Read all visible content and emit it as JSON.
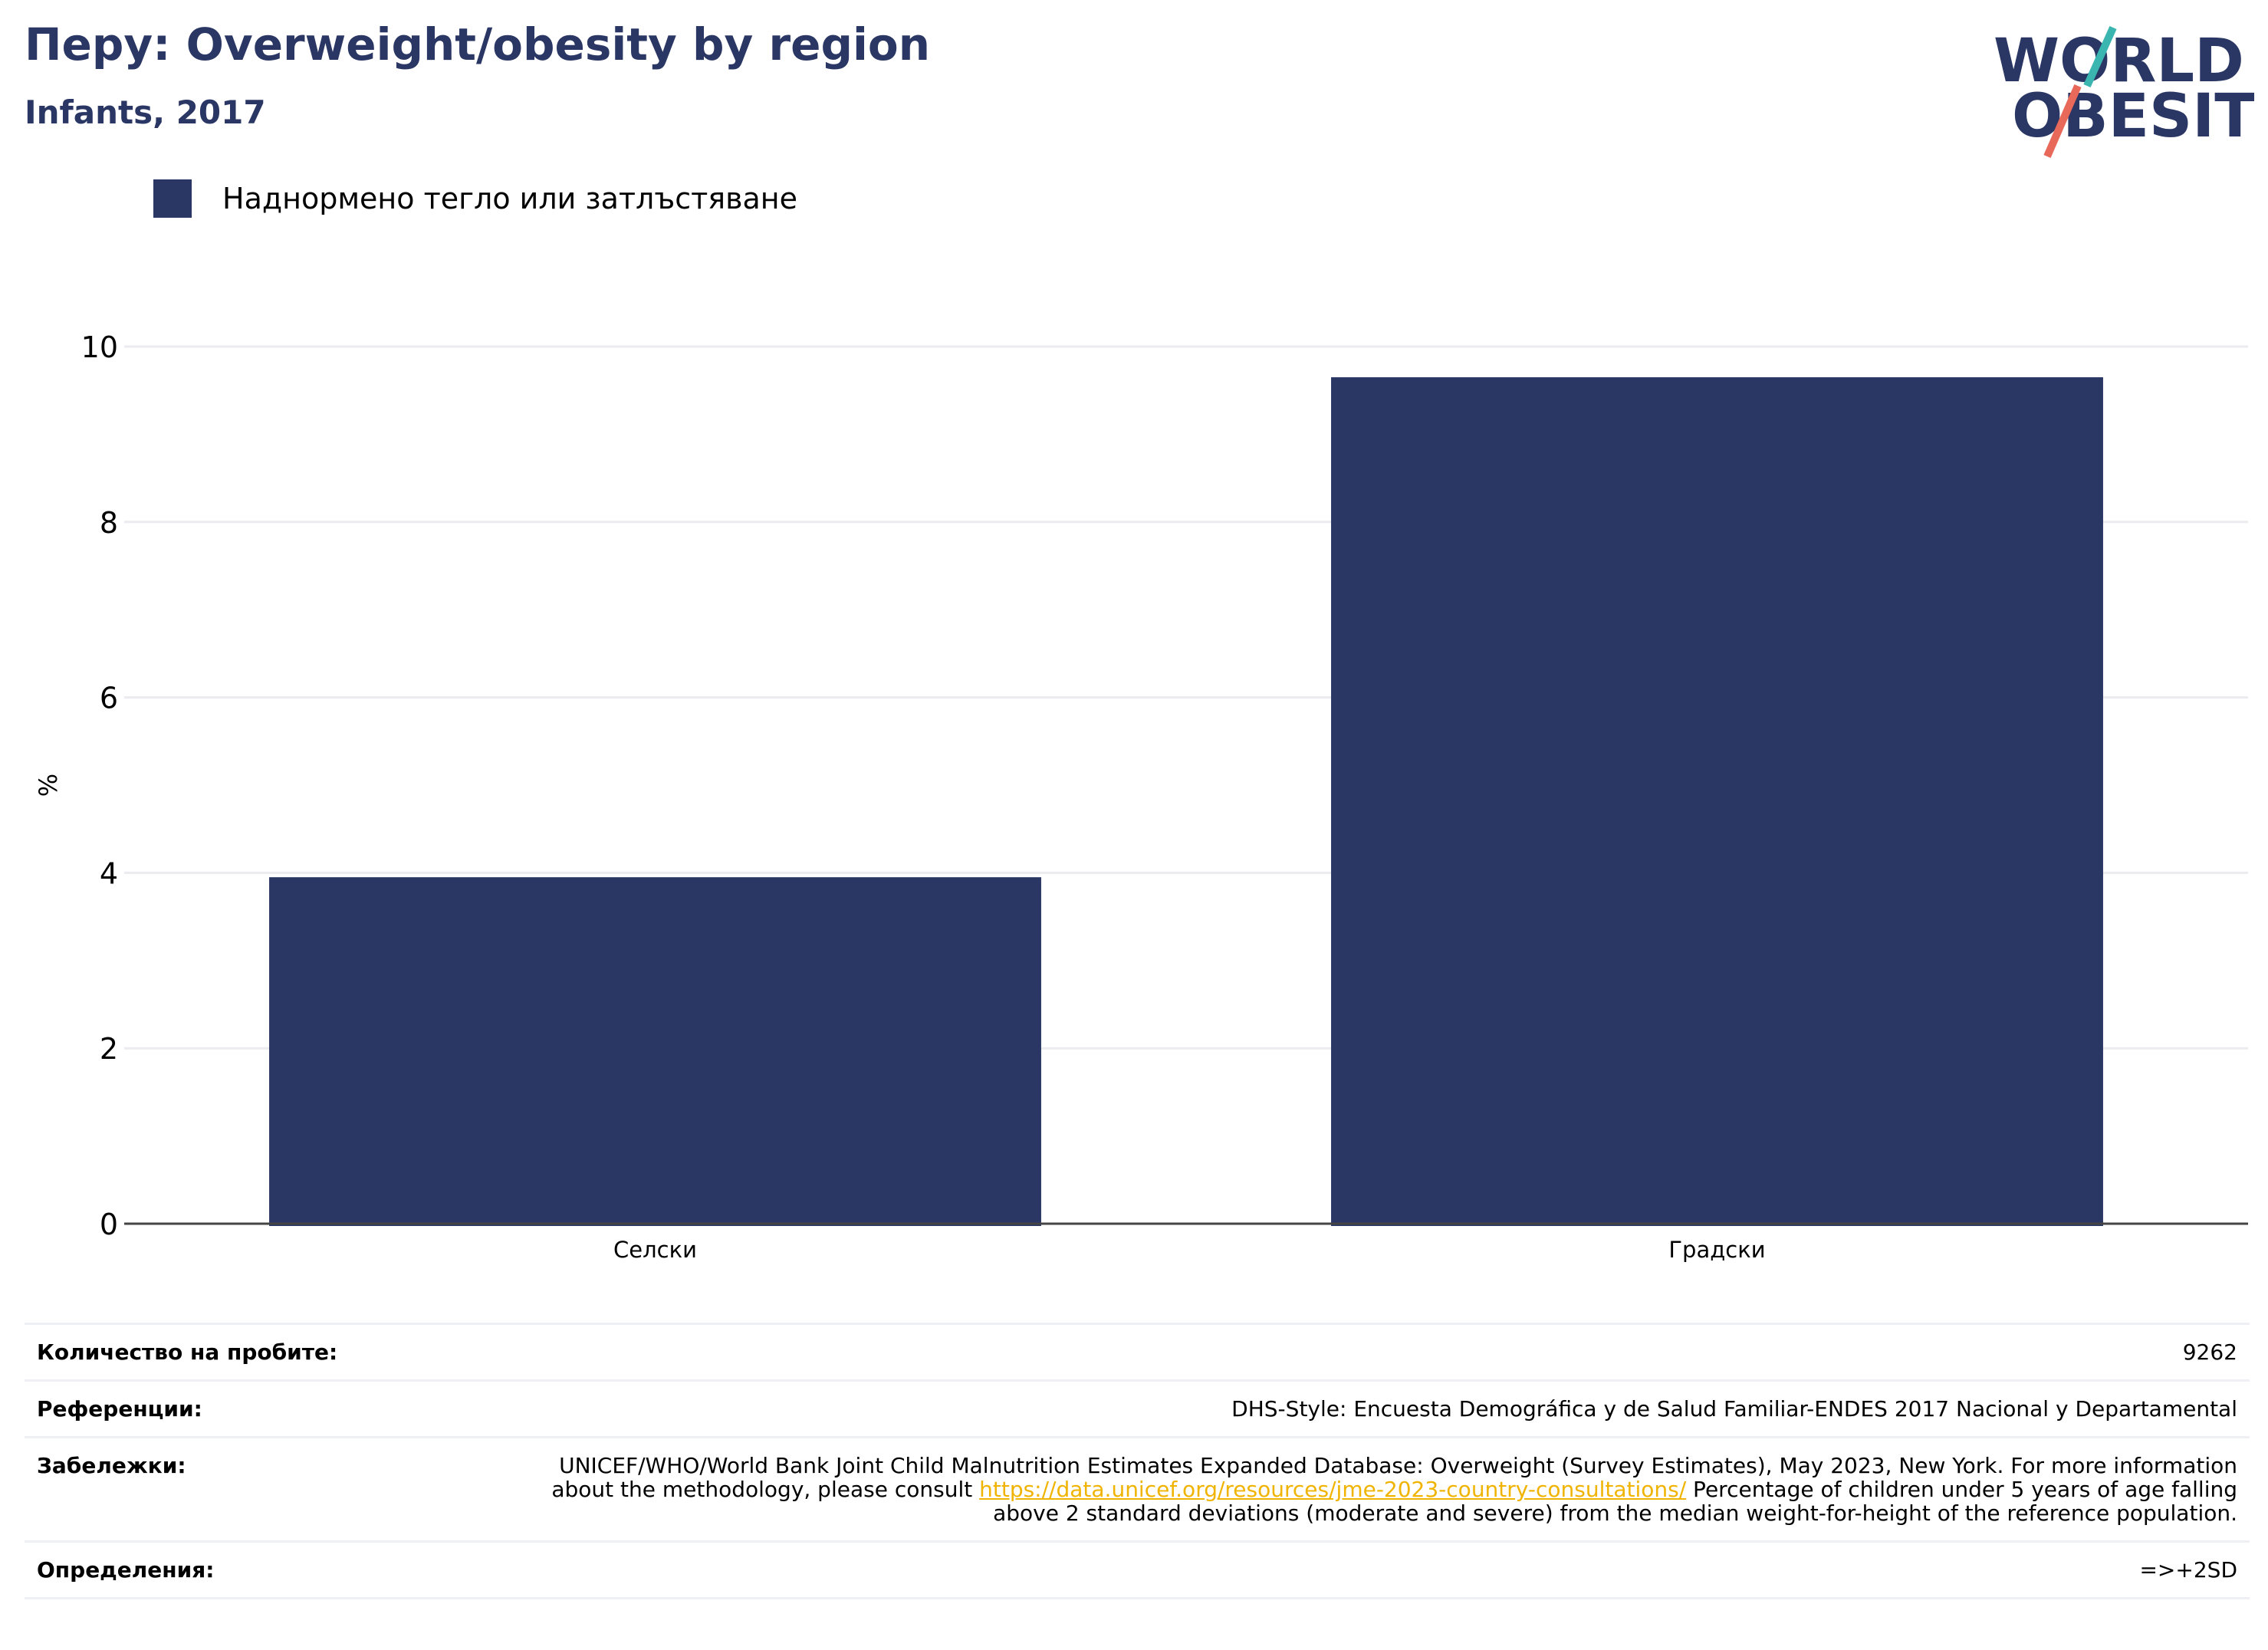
{
  "header": {
    "title": "Перу: Overweight/obesity by region",
    "subtitle": "Infants, 2017"
  },
  "logo": {
    "line1": "WORLD",
    "line2": "OBESITY",
    "icon": "world-obesity-logo",
    "colors": {
      "text": "#2a3663",
      "teal": "#3ab5b0",
      "coral": "#e8685a"
    }
  },
  "chart_data": {
    "type": "bar",
    "categories": [
      "Селски",
      "Градски"
    ],
    "series": [
      {
        "name": "Наднормено тегло или затлъстяване",
        "values": [
          3.95,
          9.65
        ],
        "color": "#2a3663"
      }
    ],
    "ylabel": "%",
    "xlabel": "",
    "ylim": [
      0,
      10
    ],
    "yticks": [
      0,
      2,
      4,
      6,
      8,
      10
    ],
    "grid": true,
    "legend_position": "top-left"
  },
  "meta": {
    "sample_size_label": "Количество на пробите:",
    "sample_size_value": "9262",
    "references_label": "Референции:",
    "references_value": "DHS-Style: Encuesta Demográfica y de Salud Familiar-ENDES 2017 Nacional y Departamental",
    "notes_label": "Забележки:",
    "notes_pre": "UNICEF/WHO/World Bank Joint Child Malnutrition Estimates Expanded Database: Overweight (Survey Estimates), May 2023, New York. For more information about the methodology, please consult ",
    "notes_link": "https://data.unicef.org/resources/jme-2023-country-consultations/",
    "notes_post": " Percentage of children under 5 years of age falling above 2 standard deviations (moderate and severe) from the median weight-for-height of the reference population.",
    "definitions_label": "Определения:",
    "definitions_value": "=>+2SD"
  }
}
